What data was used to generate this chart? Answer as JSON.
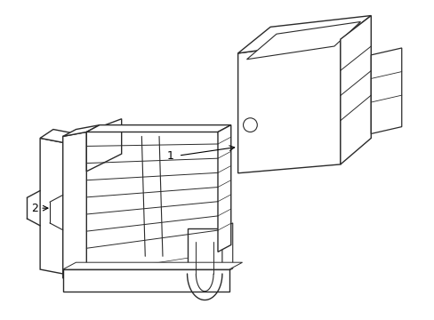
{
  "background_color": "#ffffff",
  "line_color": "#2a2a2a",
  "line_width": 1.0,
  "label1": "1",
  "label2": "2",
  "figsize": [
    4.89,
    3.6
  ],
  "dpi": 100
}
